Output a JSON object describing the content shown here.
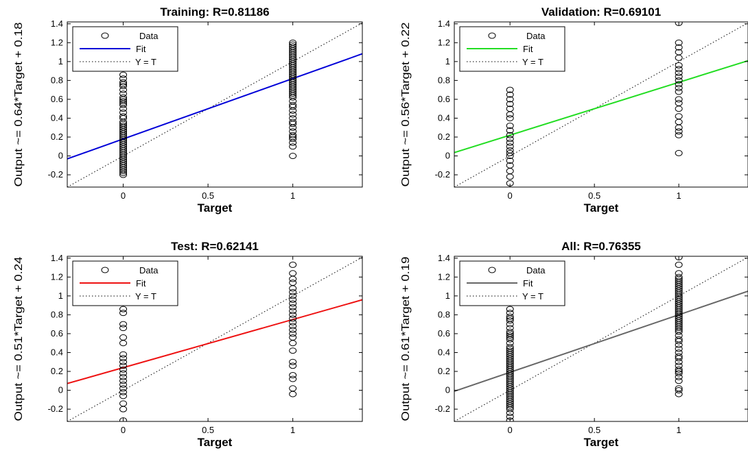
{
  "chart_data": [
    {
      "type": "scatter",
      "title": "Training: R=0.81186",
      "xlabel": "Target",
      "ylabel": "Output ~= 0.64*Target + 0.18",
      "xlim": [
        -0.33,
        1.41
      ],
      "ylim": [
        -0.33,
        1.42
      ],
      "xticks": [
        0,
        0.5,
        1
      ],
      "xtick_labels": [
        "0",
        "0.5",
        "1"
      ],
      "yticks": [
        -0.2,
        0,
        0.2,
        0.4,
        0.6,
        0.8,
        1,
        1.2,
        1.4
      ],
      "ytick_labels": [
        "-0.2",
        "0",
        "0.2",
        "0.4",
        "0.6",
        "0.8",
        "1",
        "1.2",
        "1.4"
      ],
      "legend": {
        "position": "top-left",
        "entries": [
          "Data",
          "Fit",
          "Y = T"
        ]
      },
      "fit": {
        "slope": 0.64,
        "intercept": 0.18,
        "color": "#0000d8"
      },
      "identity_line": true,
      "grid": false,
      "series": [
        {
          "name": "Data",
          "x": 0,
          "y": [
            -0.2,
            -0.18,
            -0.16,
            -0.14,
            -0.12,
            -0.1,
            -0.08,
            -0.06,
            -0.04,
            -0.02,
            0,
            0.02,
            0.04,
            0.06,
            0.08,
            0.1,
            0.12,
            0.14,
            0.16,
            0.18,
            0.2,
            0.22,
            0.24,
            0.26,
            0.28,
            0.3,
            0.32,
            0.34,
            0.36,
            0.4,
            0.42,
            0.46,
            0.5,
            0.54,
            0.56,
            0.58,
            0.6,
            0.62,
            0.66,
            0.7,
            0.74,
            0.76,
            0.78,
            0.82,
            0.86
          ]
        },
        {
          "name": "Data",
          "x": 1,
          "y": [
            0,
            0.1,
            0.14,
            0.18,
            0.2,
            0.22,
            0.26,
            0.3,
            0.34,
            0.36,
            0.4,
            0.44,
            0.48,
            0.52,
            0.54,
            0.58,
            0.62,
            0.64,
            0.66,
            0.68,
            0.7,
            0.72,
            0.74,
            0.76,
            0.78,
            0.8,
            0.82,
            0.84,
            0.86,
            0.88,
            0.9,
            0.92,
            0.94,
            0.96,
            0.98,
            1,
            1.02,
            1.04,
            1.06,
            1.08,
            1.1,
            1.12,
            1.14,
            1.16,
            1.18,
            1.2
          ]
        }
      ]
    },
    {
      "type": "scatter",
      "title": "Validation: R=0.69101",
      "xlabel": "Target",
      "ylabel": "Output ~= 0.56*Target + 0.22",
      "xlim": [
        -0.33,
        1.41
      ],
      "ylim": [
        -0.33,
        1.42
      ],
      "xticks": [
        0,
        0.5,
        1
      ],
      "xtick_labels": [
        "0",
        "0.5",
        "1"
      ],
      "yticks": [
        -0.2,
        0,
        0.2,
        0.4,
        0.6,
        0.8,
        1,
        1.2,
        1.4
      ],
      "ytick_labels": [
        "-0.2",
        "0",
        "0.2",
        "0.4",
        "0.6",
        "0.8",
        "1",
        "1.2",
        "1.4"
      ],
      "legend": {
        "position": "top-left",
        "entries": [
          "Data",
          "Fit",
          "Y = T"
        ]
      },
      "fit": {
        "slope": 0.56,
        "intercept": 0.22,
        "color": "#22dd22"
      },
      "identity_line": true,
      "grid": false,
      "series": [
        {
          "name": "Data",
          "x": 0,
          "y": [
            -0.29,
            -0.22,
            -0.16,
            -0.1,
            -0.05,
            0,
            0.03,
            0.06,
            0.1,
            0.14,
            0.18,
            0.22,
            0.27,
            0.32,
            0.4,
            0.44,
            0.5,
            0.55,
            0.6,
            0.65,
            0.7
          ]
        },
        {
          "name": "Data",
          "x": 1,
          "y": [
            0.03,
            0.22,
            0.26,
            0.3,
            0.36,
            0.42,
            0.5,
            0.56,
            0.6,
            0.68,
            0.72,
            0.76,
            0.8,
            0.84,
            0.88,
            0.92,
            0.96,
            1.04,
            1.1,
            1.15,
            1.2,
            1.41
          ]
        }
      ]
    },
    {
      "type": "scatter",
      "title": "Test: R=0.62141",
      "xlabel": "Target",
      "ylabel": "Output ~= 0.51*Target + 0.24",
      "xlim": [
        -0.33,
        1.41
      ],
      "ylim": [
        -0.33,
        1.42
      ],
      "xticks": [
        0,
        0.5,
        1
      ],
      "xtick_labels": [
        "0",
        "0.5",
        "1"
      ],
      "yticks": [
        -0.2,
        0,
        0.2,
        0.4,
        0.6,
        0.8,
        1,
        1.2,
        1.4
      ],
      "ytick_labels": [
        "-0.2",
        "0",
        "0.2",
        "0.4",
        "0.6",
        "0.8",
        "1",
        "1.2",
        "1.4"
      ],
      "legend": {
        "position": "top-left",
        "entries": [
          "Data",
          "Fit",
          "Y = T"
        ]
      },
      "fit": {
        "slope": 0.51,
        "intercept": 0.24,
        "color": "#ee1111"
      },
      "identity_line": true,
      "grid": false,
      "series": [
        {
          "name": "Data",
          "x": 0,
          "y": [
            -0.32,
            -0.2,
            -0.14,
            -0.06,
            -0.02,
            0.02,
            0.06,
            0.1,
            0.14,
            0.18,
            0.22,
            0.26,
            0.3,
            0.34,
            0.38,
            0.5,
            0.56,
            0.66,
            0.7,
            0.82,
            0.86
          ]
        },
        {
          "name": "Data",
          "x": 1,
          "y": [
            -0.04,
            0.02,
            0.12,
            0.16,
            0.26,
            0.3,
            0.42,
            0.5,
            0.56,
            0.6,
            0.64,
            0.68,
            0.72,
            0.76,
            0.8,
            0.84,
            0.88,
            0.92,
            0.96,
            1,
            1.04,
            1.08,
            1.14,
            1.18,
            1.24,
            1.33
          ]
        }
      ]
    },
    {
      "type": "scatter",
      "title": "All: R=0.76355",
      "xlabel": "Target",
      "ylabel": "Output ~= 0.61*Target + 0.19",
      "xlim": [
        -0.33,
        1.41
      ],
      "ylim": [
        -0.33,
        1.42
      ],
      "xticks": [
        0,
        0.5,
        1
      ],
      "xtick_labels": [
        "0",
        "0.5",
        "1"
      ],
      "yticks": [
        -0.2,
        0,
        0.2,
        0.4,
        0.6,
        0.8,
        1,
        1.2,
        1.4
      ],
      "ytick_labels": [
        "-0.2",
        "0",
        "0.2",
        "0.4",
        "0.6",
        "0.8",
        "1",
        "1.2",
        "1.4"
      ],
      "legend": {
        "position": "top-left",
        "entries": [
          "Data",
          "Fit",
          "Y = T"
        ]
      },
      "fit": {
        "slope": 0.61,
        "intercept": 0.19,
        "color": "#666666"
      },
      "identity_line": true,
      "grid": false,
      "series": [
        {
          "name": "Data",
          "x": 0,
          "y": [
            -0.32,
            -0.28,
            -0.24,
            -0.2,
            -0.18,
            -0.16,
            -0.14,
            -0.12,
            -0.1,
            -0.08,
            -0.06,
            -0.04,
            -0.02,
            0,
            0.02,
            0.04,
            0.06,
            0.08,
            0.1,
            0.12,
            0.14,
            0.16,
            0.18,
            0.2,
            0.22,
            0.24,
            0.26,
            0.28,
            0.3,
            0.32,
            0.34,
            0.36,
            0.38,
            0.4,
            0.42,
            0.44,
            0.46,
            0.5,
            0.54,
            0.56,
            0.58,
            0.6,
            0.62,
            0.66,
            0.7,
            0.74,
            0.76,
            0.78,
            0.82,
            0.86
          ]
        },
        {
          "name": "Data",
          "x": 1,
          "y": [
            -0.04,
            0,
            0.02,
            0.1,
            0.14,
            0.18,
            0.2,
            0.22,
            0.26,
            0.3,
            0.34,
            0.36,
            0.4,
            0.44,
            0.48,
            0.52,
            0.54,
            0.58,
            0.62,
            0.64,
            0.66,
            0.68,
            0.7,
            0.72,
            0.74,
            0.76,
            0.78,
            0.8,
            0.82,
            0.84,
            0.86,
            0.88,
            0.9,
            0.92,
            0.94,
            0.96,
            0.98,
            1,
            1.02,
            1.04,
            1.06,
            1.08,
            1.1,
            1.12,
            1.14,
            1.16,
            1.18,
            1.2,
            1.24,
            1.33,
            1.41
          ]
        }
      ]
    }
  ]
}
